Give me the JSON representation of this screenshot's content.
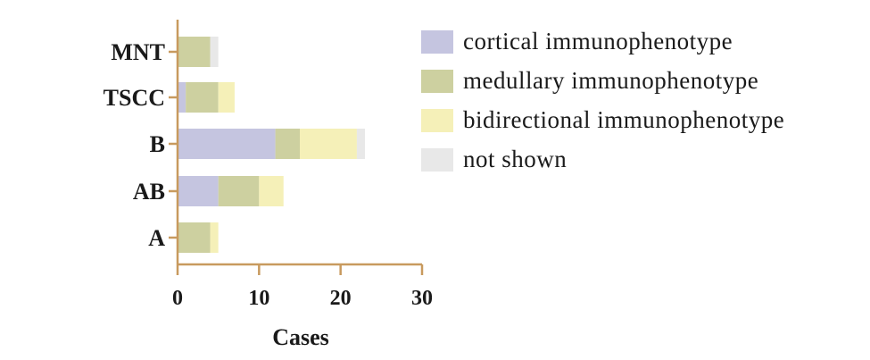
{
  "chart_data": {
    "type": "bar",
    "orientation": "horizontal",
    "stacked": true,
    "categories": [
      "A",
      "AB",
      "B",
      "TSCC",
      "MNT"
    ],
    "series": [
      {
        "name": "cortical immunophenotype",
        "color": "#c5c5e0",
        "values": [
          0,
          5,
          12,
          1,
          0
        ]
      },
      {
        "name": "medullary immunophenotype",
        "color": "#cdd0a0",
        "values": [
          4,
          5,
          3,
          4,
          4
        ]
      },
      {
        "name": "bidirectional immunophenotype",
        "color": "#f5f0b8",
        "values": [
          1,
          3,
          7,
          2,
          0
        ]
      },
      {
        "name": "not shown",
        "color": "#e8e8e8",
        "values": [
          0,
          0,
          1,
          0,
          1
        ]
      }
    ],
    "xlabel": "Cases",
    "ylabel": "",
    "xlim": [
      0,
      30
    ],
    "xticks": [
      0,
      10,
      20,
      30
    ],
    "grid": false,
    "legend": "right",
    "axis_color": "#c89a5e"
  }
}
